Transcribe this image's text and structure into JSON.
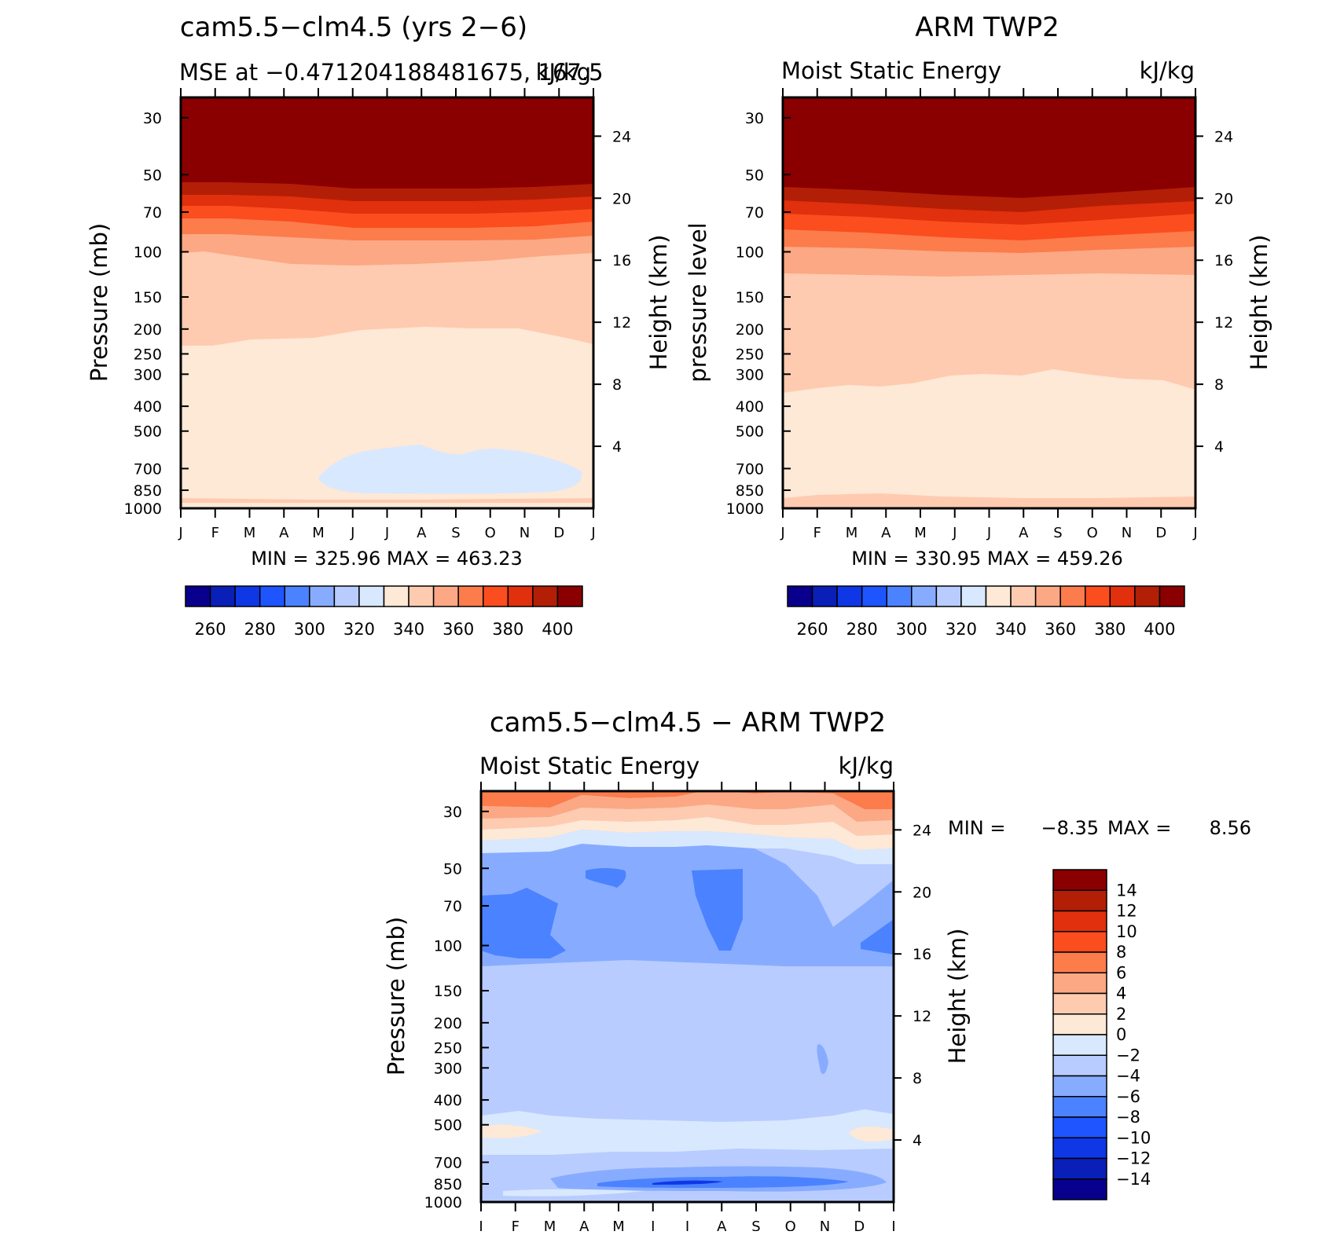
{
  "colors": {
    "mse_levels": [
      "#08008c",
      "#0a1fb8",
      "#0f37e6",
      "#1e55ff",
      "#4b82ff",
      "#87acff",
      "#b8ccff",
      "#d8e8ff",
      "#fee8d6",
      "#fecbb0",
      "#fca884",
      "#fc7c4c",
      "#fb4d1e",
      "#e0300d",
      "#b31e06",
      "#8a0000"
    ],
    "diff_levels": [
      "#08008c",
      "#0a1fb8",
      "#0f37e6",
      "#1e55ff",
      "#4b82ff",
      "#87acff",
      "#b8ccff",
      "#d8e8ff",
      "#fee8d6",
      "#fecbb0",
      "#fca884",
      "#fc7c4c",
      "#fb4d1e",
      "#e0300d",
      "#b31e06",
      "#8a0000"
    ]
  },
  "chart_data": [
    {
      "type": "heatmap",
      "title": "cam5.5−clm4.5 (yrs 2−6)",
      "subtitle_left": "MSE at −0.471204188481675,  167.5",
      "subtitle_right": "kJ/kg",
      "ylabel": "Pressure (mb)",
      "ylabel_right": "Height (km)",
      "x_ticks": [
        "J",
        "F",
        "M",
        "A",
        "M",
        "J",
        "J",
        "A",
        "S",
        "O",
        "N",
        "D",
        "J"
      ],
      "y_ticks": [
        "30",
        "50",
        "70",
        "100",
        "150",
        "200",
        "250",
        "300",
        "400",
        "500",
        "700",
        "850",
        "1000"
      ],
      "y_right_ticks": [
        "24",
        "20",
        "16",
        "12",
        "8",
        "4"
      ],
      "stats": "MIN =  325.96  MAX =  463.23",
      "colorbar_labels": [
        "260",
        "280",
        "300",
        "320",
        "340",
        "360",
        "380",
        "400"
      ],
      "min": 325.96,
      "max": 463.23
    },
    {
      "type": "heatmap",
      "title": "ARM TWP2",
      "subtitle_left": "Moist Static Energy",
      "subtitle_right": "kJ/kg",
      "ylabel": "pressure level",
      "ylabel_right": "Height (km)",
      "x_ticks": [
        "J",
        "F",
        "M",
        "A",
        "M",
        "J",
        "J",
        "A",
        "S",
        "O",
        "N",
        "D",
        "J"
      ],
      "y_ticks": [
        "30",
        "50",
        "70",
        "100",
        "150",
        "200",
        "250",
        "300",
        "400",
        "500",
        "700",
        "850",
        "1000"
      ],
      "y_right_ticks": [
        "24",
        "20",
        "16",
        "12",
        "8",
        "4"
      ],
      "stats": "MIN =  330.95  MAX =  459.26",
      "colorbar_labels": [
        "260",
        "280",
        "300",
        "320",
        "340",
        "360",
        "380",
        "400"
      ],
      "min": 330.95,
      "max": 459.26
    },
    {
      "type": "heatmap",
      "title": "cam5.5−clm4.5 − ARM TWP2",
      "subtitle_left": "Moist Static Energy",
      "subtitle_right": "kJ/kg",
      "ylabel": "Pressure (mb)",
      "ylabel_right": "Height (km)",
      "x_ticks": [
        "J",
        "F",
        "M",
        "A",
        "M",
        "J",
        "J",
        "A",
        "S",
        "O",
        "N",
        "D",
        "J"
      ],
      "y_ticks": [
        "30",
        "50",
        "70",
        "100",
        "150",
        "200",
        "250",
        "300",
        "400",
        "500",
        "700",
        "850",
        "1000"
      ],
      "y_right_ticks": [
        "24",
        "20",
        "16",
        "12",
        "8",
        "4"
      ],
      "stats_min_label": "MIN =",
      "stats_min": "−8.35",
      "stats_max_label": "MAX =",
      "stats_max": "8.56",
      "colorbar_labels": [
        "14",
        "12",
        "10",
        "8",
        "6",
        "4",
        "2",
        "0",
        "−2",
        "−4",
        "−6",
        "−8",
        "−10",
        "−12",
        "−14"
      ],
      "min": -8.35,
      "max": 8.56
    }
  ]
}
